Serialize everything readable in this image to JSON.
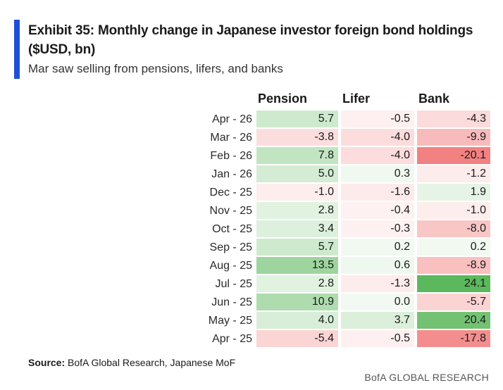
{
  "header": {
    "title": "Exhibit 35: Monthly change in Japanese investor foreign bond holdings ($USD, bn)",
    "subtitle": "Mar saw selling from pensions, lifers, and banks"
  },
  "chart_data": {
    "type": "table",
    "columns": [
      "Pension",
      "Lifer",
      "Bank"
    ],
    "rows": [
      {
        "label": "Apr - 26",
        "values": [
          "5.7",
          "-0.5",
          "-4.3"
        ]
      },
      {
        "label": "Mar - 26",
        "values": [
          "-3.8",
          "-4.0",
          "-9.9"
        ]
      },
      {
        "label": "Feb - 26",
        "values": [
          "7.8",
          "-4.0",
          "-20.1"
        ]
      },
      {
        "label": "Jan - 26",
        "values": [
          "5.0",
          "0.3",
          "-1.2"
        ]
      },
      {
        "label": "Dec - 25",
        "values": [
          "-1.0",
          "-1.6",
          "1.9"
        ]
      },
      {
        "label": "Nov - 25",
        "values": [
          "2.8",
          "-0.4",
          "-1.0"
        ]
      },
      {
        "label": "Oct - 25",
        "values": [
          "3.4",
          "-0.3",
          "-8.0"
        ]
      },
      {
        "label": "Sep - 25",
        "values": [
          "5.7",
          "0.2",
          "0.2"
        ]
      },
      {
        "label": "Aug - 25",
        "values": [
          "13.5",
          "0.6",
          "-8.9"
        ]
      },
      {
        "label": "Jul - 25",
        "values": [
          "2.8",
          "-1.3",
          "24.1"
        ]
      },
      {
        "label": "Jun - 25",
        "values": [
          "10.9",
          "0.0",
          "-5.7"
        ]
      },
      {
        "label": "May - 25",
        "values": [
          "4.0",
          "3.7",
          "20.4"
        ]
      },
      {
        "label": "Apr - 25",
        "values": [
          "-5.4",
          "-0.5",
          "-17.8"
        ]
      }
    ],
    "heatmap_colors": {
      "positive": "#5cb85c",
      "negative": "#f06a6a"
    }
  },
  "footer": {
    "source_label": "Source:",
    "source_text": " BofA Global Research, Japanese MoF",
    "brand": "BofA GLOBAL RESEARCH"
  }
}
